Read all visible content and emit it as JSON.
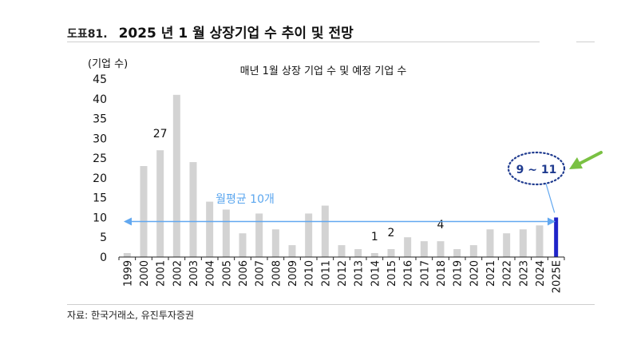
{
  "header": {
    "figure_number": "도표81.",
    "title": "2025 년 1 월 상장기업 수 추이 및 전망"
  },
  "source_note": "자료: 한국거래소, 유진투자증권",
  "colors": {
    "bar": "#d3d3d3",
    "highlight_bar": "#1f24c8",
    "arrow": "#62a8f0",
    "avg_label": "#5aa6ef",
    "forecast_circle": "#1f3b8f",
    "green_arrow": "#7ac143"
  },
  "chart_data": {
    "type": "bar",
    "title": "매년 1월 상장 기업 수 및 예정 기업 수",
    "ylabel": "(기업 수)",
    "xlabel": "",
    "ylim": [
      0,
      45
    ],
    "yticks": [
      0,
      5,
      10,
      15,
      20,
      25,
      30,
      35,
      40,
      45
    ],
    "grid": false,
    "categories": [
      "1999",
      "2000",
      "2001",
      "2002",
      "2003",
      "2004",
      "2005",
      "2006",
      "2007",
      "2008",
      "2009",
      "2010",
      "2011",
      "2012",
      "2013",
      "2014",
      "2015",
      "2016",
      "2017",
      "2018",
      "2019",
      "2020",
      "2021",
      "2022",
      "2023",
      "2024",
      "2025E"
    ],
    "values": [
      1,
      23,
      27,
      41,
      24,
      14,
      12,
      6,
      11,
      7,
      3,
      11,
      13,
      3,
      2,
      1,
      2,
      5,
      4,
      4,
      2,
      3,
      7,
      6,
      7,
      8,
      10
    ],
    "highlight_category": "2025E",
    "data_labels": [
      {
        "category": "2001",
        "text": "27"
      },
      {
        "category": "2014",
        "text": "1"
      },
      {
        "category": "2015",
        "text": "2"
      },
      {
        "category": "2018",
        "text": "4"
      }
    ],
    "annotations": {
      "average": {
        "value": 10,
        "text": "월평균 10개"
      },
      "forecast": {
        "text": "9 ~ 11"
      }
    }
  }
}
